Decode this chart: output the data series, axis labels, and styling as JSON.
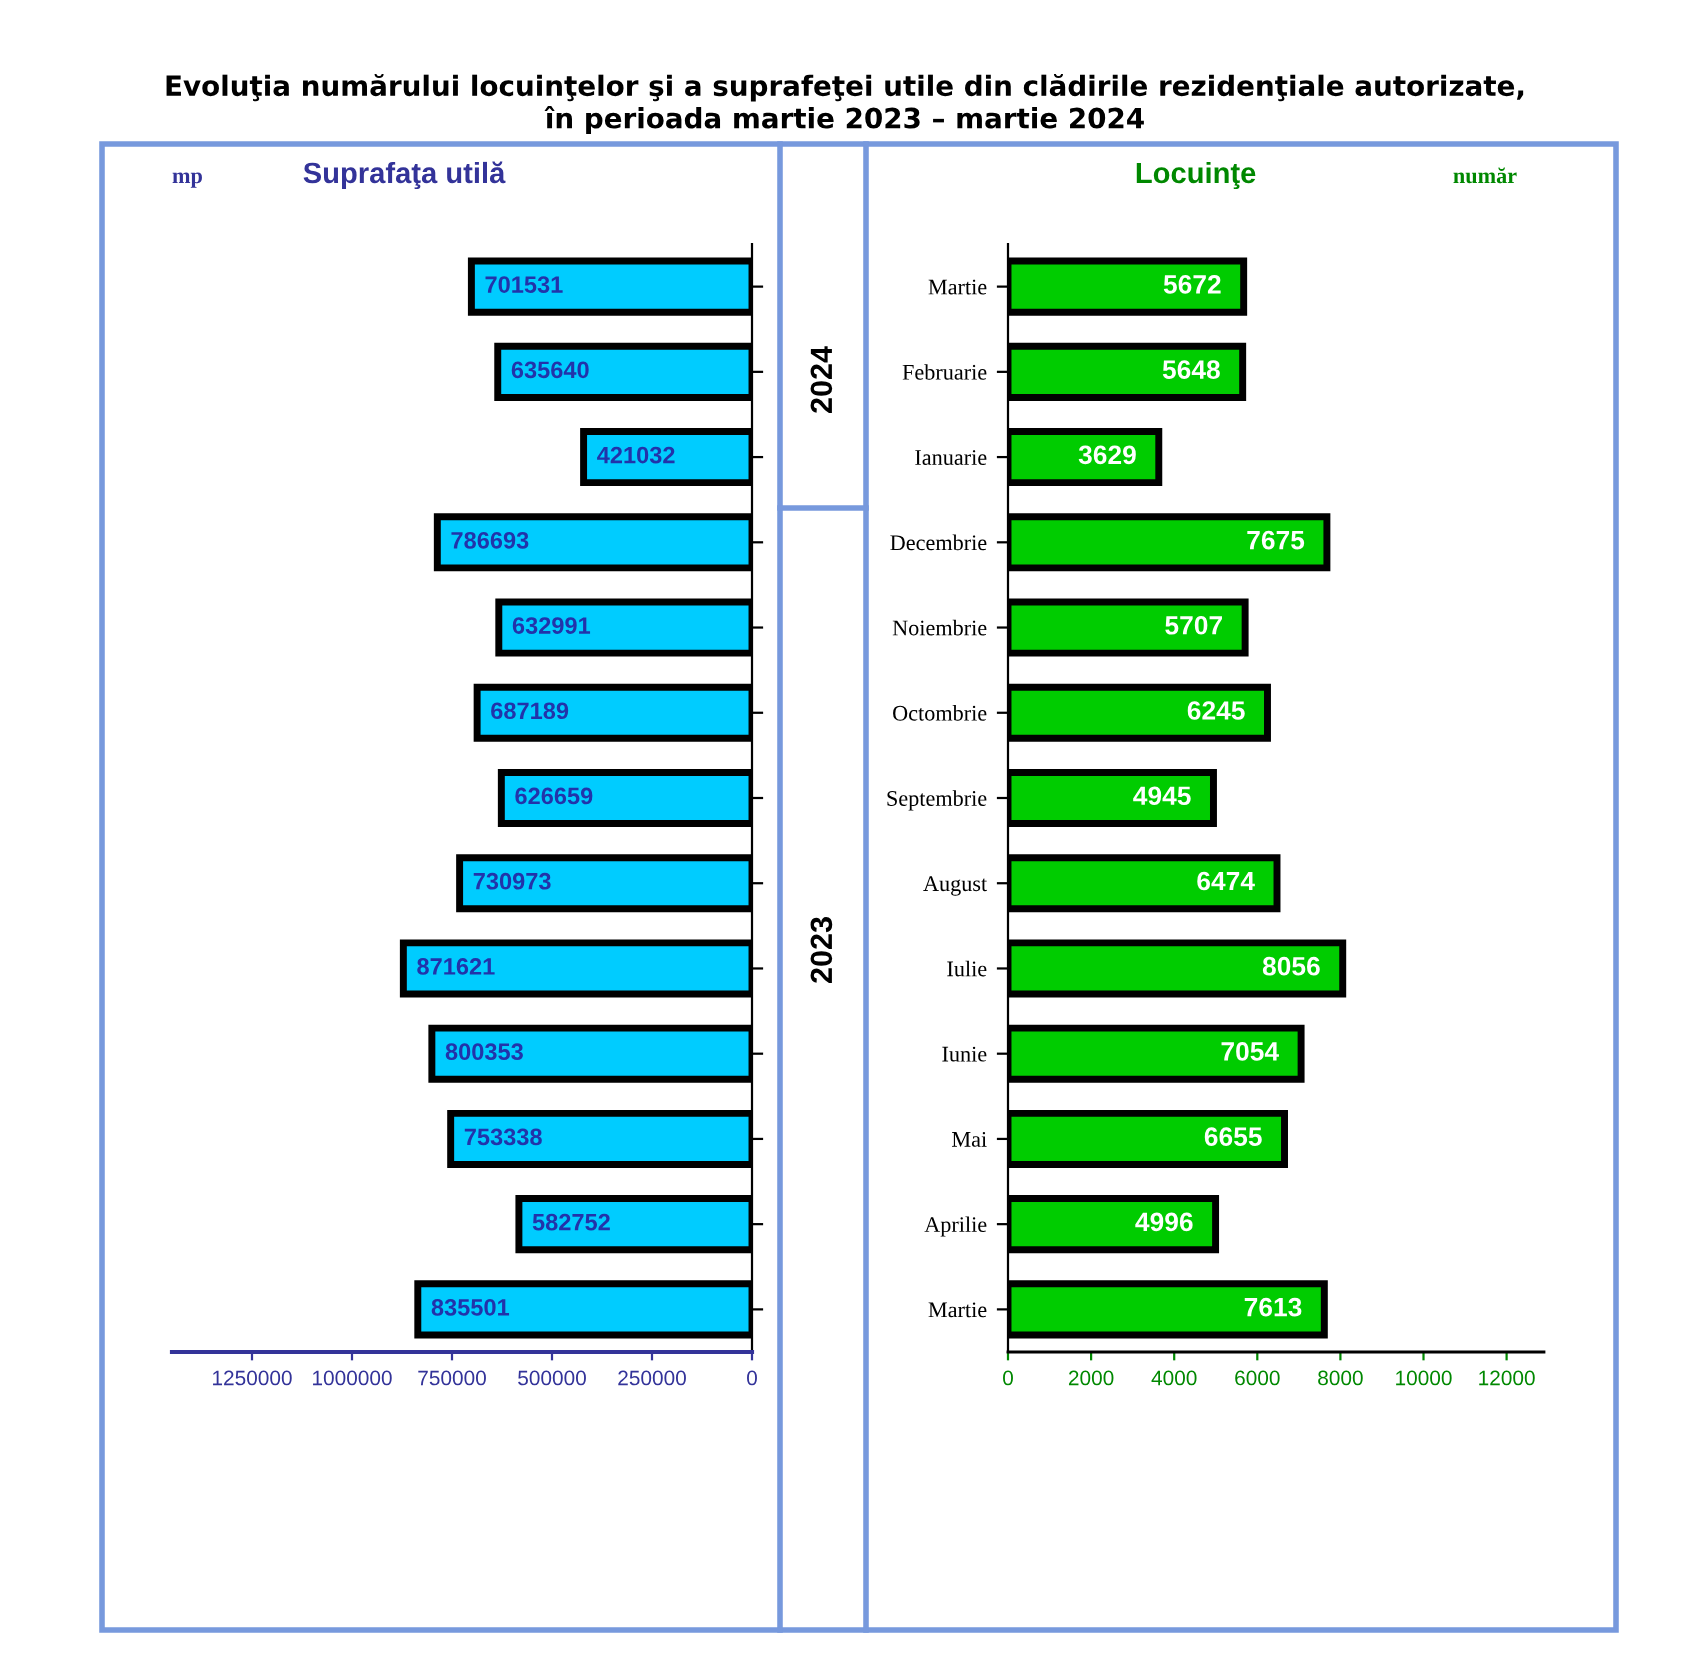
{
  "chart_data": [
    {
      "type": "bar",
      "orientation": "horizontal",
      "title": "Suprafaţa utilă",
      "xlabel": "mp",
      "annotations": [
        "Evoluţia numărului locuinţelor şi a suprafeţei utile din clădirile rezidenţiale autorizate,\nîn perioada martie 2023 – martie 2024"
      ],
      "categories": [
        null,
        null,
        null,
        null,
        null,
        null,
        null,
        null,
        null,
        null,
        null,
        null,
        null
      ],
      "values": [
        701531,
        635640,
        421032,
        786693,
        632991,
        687189,
        626659,
        730973,
        871621,
        800353,
        753338,
        582752,
        835501
      ],
      "color": "#00ccff",
      "xlim": [
        1450000,
        0
      ],
      "xticks": [
        1250000,
        1000000,
        750000,
        500000,
        250000,
        0
      ],
      "data_labels": true,
      "grid": false,
      "tick_labels": "x"
    },
    {
      "type": "bar",
      "orientation": "horizontal",
      "title": "Locuinţe",
      "xlabel": "număr",
      "annotations": [
        "2024",
        "2023"
      ],
      "categories": [
        "Martie",
        "Februarie",
        "Ianuarie",
        "Decembrie",
        "Noiembrie",
        "Octombrie",
        "Septembrie",
        "August",
        "Iulie",
        "Iunie",
        "Mai",
        "Aprilie",
        "Martie"
      ],
      "values": [
        5672,
        5648,
        3629,
        7675,
        5707,
        6245,
        4945,
        6474,
        8056,
        7054,
        6655,
        4996,
        7613
      ],
      "color": "#00cc00",
      "xlim": [
        0,
        12900
      ],
      "xticks": [
        0,
        2000,
        4000,
        6000,
        8000,
        10000,
        12000
      ],
      "data_labels": true,
      "grid": false
    }
  ]
}
